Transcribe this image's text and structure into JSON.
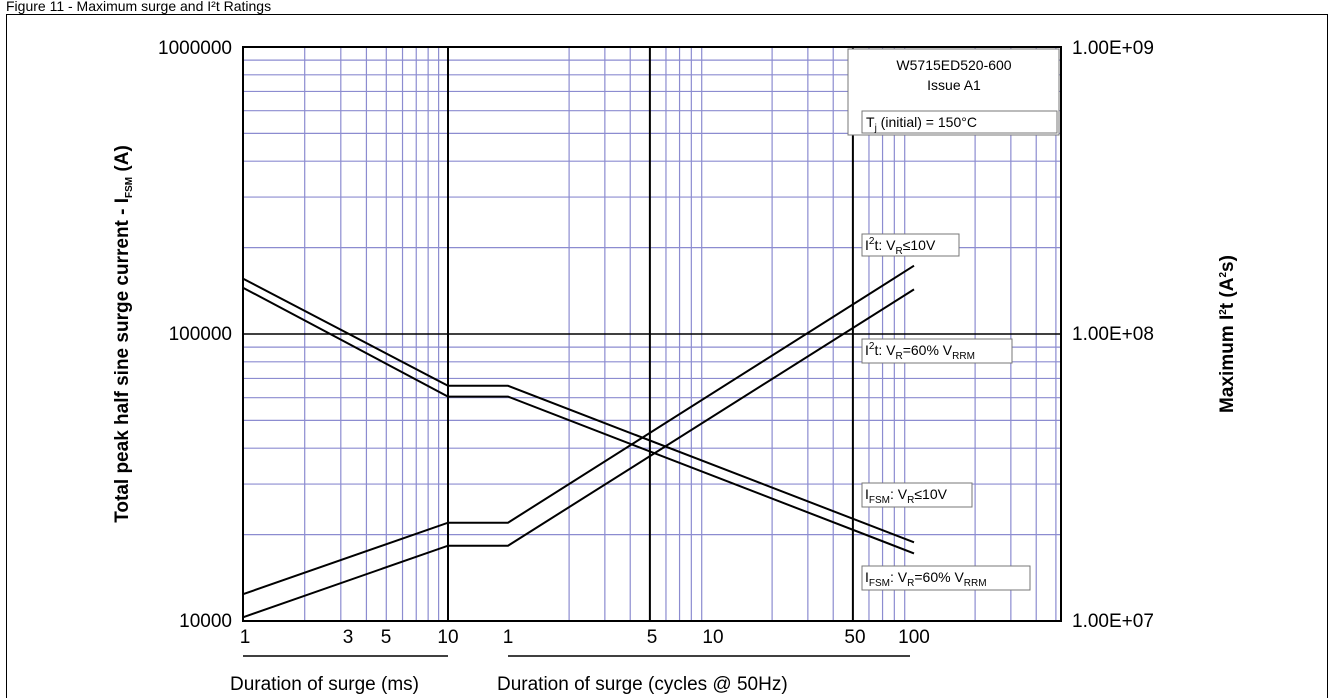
{
  "page": {
    "top_text": "Figure 11 - Maximum surge and I²t Ratings",
    "figure_code": "W5715ED520-600",
    "issue": "Issue A1",
    "tj_note": {
      "t": "T",
      "j": "j",
      "rest": " (initial) = 150°C"
    }
  },
  "colors": {
    "grid_minor": "#8c8cd0",
    "grid_major": "#000000",
    "curve": "#000000"
  },
  "chart_data": {
    "type": "line",
    "title": "",
    "y_left_label": {
      "pre": "Total peak half sine surge current - I",
      "sub": "FSM",
      "post": " (A)"
    },
    "y_right_label": {
      "pre": "Maximum I",
      "sup": "2",
      "post": "t (A",
      "sup2": "2",
      "post2": "s)"
    },
    "y_left_ticks": [
      "1000000",
      "100000",
      "10000"
    ],
    "y_right_ticks": [
      "1.00E+09",
      "1.00E+08",
      "1.00E+07"
    ],
    "y_left_range": [
      10000,
      1000000
    ],
    "y_right_range": [
      10000000,
      1000000000
    ],
    "y_scale": "log",
    "x_ms_ticks": [
      "1",
      "3",
      "5",
      "10"
    ],
    "x_cycle_ticks": [
      "1",
      "5",
      "10",
      "50",
      "100"
    ],
    "x_ms_label": "Duration of surge (ms)",
    "x_cycle_label": "Duration of surge (cycles @ 50Hz)",
    "x_ms_range": [
      1,
      10
    ],
    "x_cycle_range": [
      1,
      100
    ],
    "grid": true,
    "series": [
      {
        "label": {
          "a": "I",
          "sub1": "FSM",
          "b": ": V",
          "sub2": "R",
          "c": "≤10V"
        },
        "axis": "left",
        "ms": [
          [
            1,
            156000
          ],
          [
            10,
            66000
          ]
        ],
        "cycles": [
          [
            1,
            66000
          ],
          [
            100,
            18800
          ]
        ]
      },
      {
        "label": {
          "a": "I",
          "sub1": "FSM",
          "b": ": V",
          "sub2": "R",
          "c": "=60% V",
          "sub3": "RRM"
        },
        "axis": "left",
        "ms": [
          [
            1,
            145000
          ],
          [
            10,
            60500
          ]
        ],
        "cycles": [
          [
            1,
            60500
          ],
          [
            100,
            17200
          ]
        ]
      },
      {
        "label": {
          "a": "I",
          "sup": "2",
          "b": "t: V",
          "sub2": "R",
          "c": "≤10V"
        },
        "axis": "right",
        "ms": [
          [
            1,
            12400000
          ],
          [
            10,
            22000000
          ]
        ],
        "cycles": [
          [
            1,
            22000000
          ],
          [
            100,
            173000000
          ]
        ]
      },
      {
        "label": {
          "a": "I",
          "sup": "2",
          "b": "t: V",
          "sub2": "R",
          "c": "=60% V",
          "sub3": "RRM"
        },
        "axis": "right",
        "ms": [
          [
            1,
            10300000
          ],
          [
            10,
            18300000
          ]
        ],
        "cycles": [
          [
            1,
            18300000
          ],
          [
            100,
            143000000
          ]
        ]
      }
    ]
  }
}
